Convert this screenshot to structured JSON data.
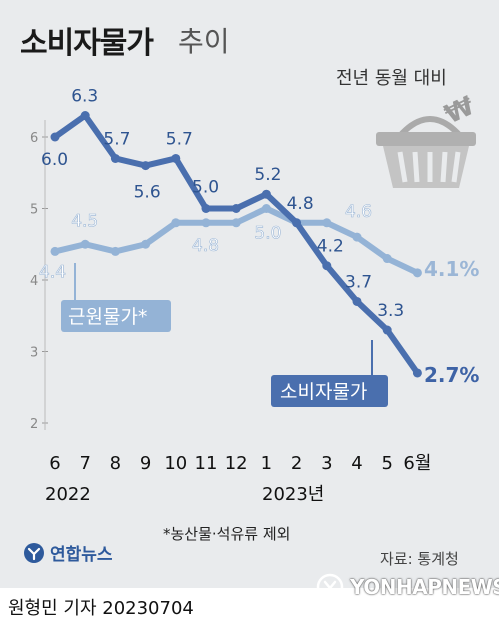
{
  "title": {
    "main": "소비자물가",
    "sub": "추이"
  },
  "subtitle": "전년 동월 대비",
  "footnote": "*농산물·석유류 제외",
  "source": "자료: 통계청",
  "logo": "연합뉴스",
  "byline": "원형민 기자  20230704",
  "watermark": "YONHAPNEWS",
  "colors": {
    "cpi": "#4a6fae",
    "core": "#94b3d6",
    "background": "#e9ebed"
  },
  "icon": "shopping-basket-won-icon",
  "chart_data": {
    "type": "line",
    "x": [
      "6",
      "7",
      "8",
      "9",
      "10",
      "11",
      "12",
      "1",
      "2",
      "3",
      "4",
      "5",
      "6월"
    ],
    "year_labels": [
      "2022",
      "2023년"
    ],
    "ylim": [
      2,
      6.5
    ],
    "yticks": [
      2,
      3,
      4,
      5,
      6
    ],
    "grid": false,
    "series": [
      {
        "name": "소비자물가",
        "values": [
          6.0,
          6.3,
          5.7,
          5.6,
          5.7,
          5.0,
          5.0,
          5.2,
          4.8,
          4.2,
          3.7,
          3.3,
          2.7
        ],
        "labels": [
          "6.0",
          "6.3",
          "5.7",
          "5.6",
          "5.7",
          "5.0",
          "",
          "5.2",
          "4.8",
          "4.2",
          "3.7",
          "3.3",
          "2.7%"
        ]
      },
      {
        "name": "근원물가*",
        "values": [
          4.4,
          4.5,
          4.4,
          4.5,
          4.8,
          4.8,
          4.8,
          5.0,
          4.8,
          4.8,
          4.6,
          4.3,
          4.1
        ],
        "labels": [
          "4.4",
          "4.5",
          "",
          "",
          "",
          "4.8",
          "",
          "5.0",
          "",
          "",
          "4.6",
          "",
          "4.1%"
        ]
      }
    ]
  }
}
